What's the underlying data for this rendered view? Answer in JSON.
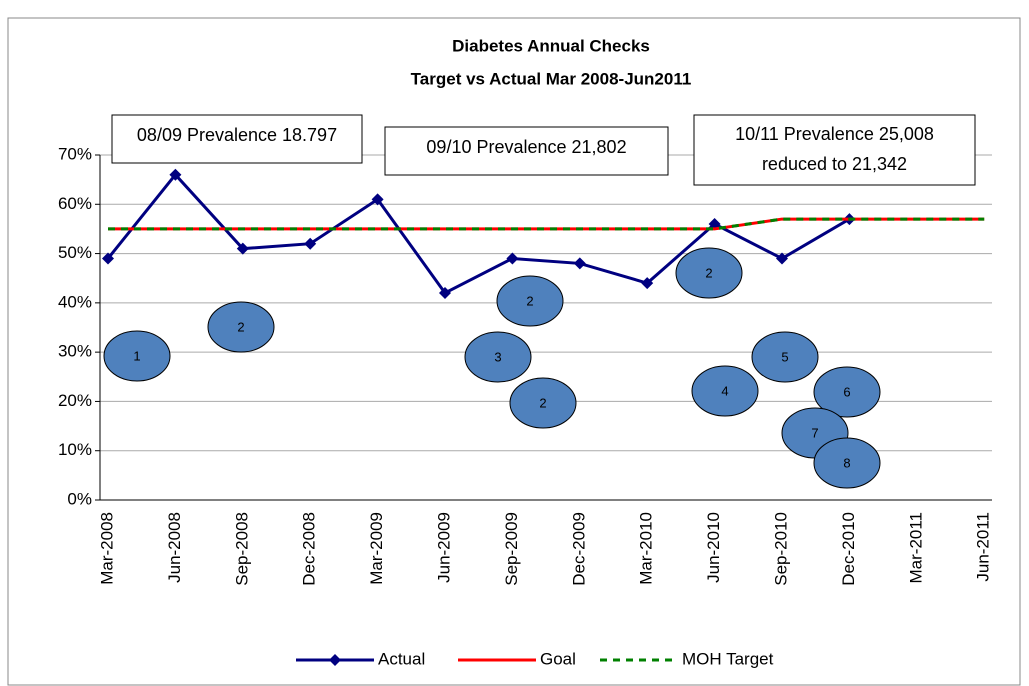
{
  "chart_data": {
    "type": "line",
    "title": "Diabetes Annual Checks",
    "subtitle": "Target vs Actual Mar 2008-Jun2011",
    "categories": [
      "Mar-2008",
      "Jun-2008",
      "Sep-2008",
      "Dec-2008",
      "Mar-2009",
      "Jun-2009",
      "Sep-2009",
      "Dec-2009",
      "Mar-2010",
      "Jun-2010",
      "Sep-2010",
      "Dec-2010",
      "Mar-2011",
      "Jun-2011"
    ],
    "series": [
      {
        "name": "Actual",
        "color": "#000080",
        "values": [
          49,
          66,
          51,
          52,
          61,
          42,
          49,
          48,
          44,
          56,
          49,
          57,
          null,
          null
        ]
      },
      {
        "name": "Goal",
        "color": "#ff0000",
        "values": [
          55,
          55,
          55,
          55,
          55,
          55,
          55,
          55,
          55,
          55,
          57,
          57,
          57,
          57
        ]
      },
      {
        "name": "MOH Target",
        "color": "#008000",
        "values": [
          55,
          55,
          55,
          55,
          55,
          55,
          55,
          55,
          55,
          55,
          57,
          57,
          57,
          57
        ]
      }
    ],
    "ylim": [
      0,
      70
    ],
    "yticks": [
      {
        "value": 0,
        "label": "0%"
      },
      {
        "value": 10,
        "label": "10%"
      },
      {
        "value": 20,
        "label": "20%"
      },
      {
        "value": 30,
        "label": "30%"
      },
      {
        "value": 40,
        "label": "40%"
      },
      {
        "value": 50,
        "label": "50%"
      },
      {
        "value": 60,
        "label": "60%"
      },
      {
        "value": 70,
        "label": "70%"
      }
    ],
    "grid": true,
    "legend": "bottom",
    "annotations": [
      [
        "08/09 Prevalence 18.797"
      ],
      [
        "09/10 Prevalence 21,802"
      ],
      [
        "10/11 Prevalence 25,008",
        "reduced to 21,342"
      ]
    ],
    "markers": [
      "1",
      "2",
      "2",
      "3",
      "2",
      "2",
      "4",
      "5",
      "6",
      "7",
      "8"
    ]
  }
}
